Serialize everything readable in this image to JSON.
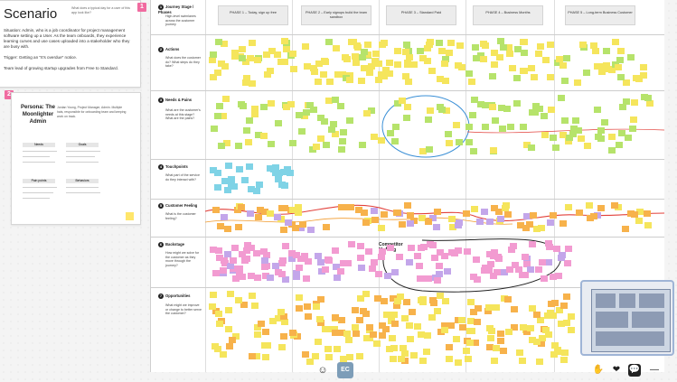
{
  "scenario_card": {
    "badge": "1",
    "title": "Scenario",
    "subtitle": "What does a typical day for a user of this app look like?",
    "paragraph_1": "Situation: Admin, who is a job coordinator for project management software setting up a User. As the team onboards, they experience learning curves and use cases uploaded into a stakeholder who they are busy with.",
    "paragraph_2": "Trigger: Getting an \"It's overdue\" notice.",
    "paragraph_3": "Team lead of growing startup upgrades from Free to Standard."
  },
  "persona_card": {
    "badge": "2",
    "name": "Persona: The Moonlighter Admin",
    "info": "Jordan Young, Project Manager, Admin. Multiple hats, responsible for onboarding team and keeping work on track.",
    "sections": [
      "Needs",
      "Goals",
      "Pain points",
      "Behaviors"
    ]
  },
  "board": {
    "phases": [
      "PHASE 1 – Today, sign up free",
      "PHASE 2 – Early signups build the team sandbox",
      "PHASE 3 – Standard Paid",
      "PHASE 4 – Business Months",
      "PHASE 5 – Long-term Business Customer"
    ],
    "rows": [
      {
        "num": "1",
        "label": "Journey Stage / Phases",
        "desc": "High-level swimlanes across the customer journey"
      },
      {
        "num": "2",
        "label": "Actions",
        "desc": "What does the customer do? What steps do they take?"
      },
      {
        "num": "3",
        "label": "Needs & Pains",
        "desc": "What are the customer's needs at this stage? What are the pains?"
      },
      {
        "num": "4",
        "label": "Touchpoints",
        "desc": "What part of the service do they interact with?"
      },
      {
        "num": "5",
        "label": "Customer Feeling",
        "desc": "What is the customer feeling?"
      },
      {
        "num": "6",
        "label": "Backstage",
        "desc": "How might we solve for the customer as they move through the journey?"
      },
      {
        "num": "7",
        "label": "Opportunities",
        "desc": "What might we improve or change to better serve the customer?"
      }
    ],
    "competitor_label": "Competitor Marking"
  },
  "colors": {
    "yellow": "#f5e55c",
    "green": "#b6e36b",
    "blue": "#7fd3e6",
    "pink": "#f29bd1",
    "orange": "#f7b24b",
    "lavender": "#c3a6ea",
    "accent": "#f06ba0"
  },
  "toolbar": {
    "emoji_icon": "☺",
    "avatar_initials": "EC",
    "hand_icon": "✋",
    "reaction_icon": "❤",
    "chat_icon": "💬",
    "more_icon": "—"
  }
}
